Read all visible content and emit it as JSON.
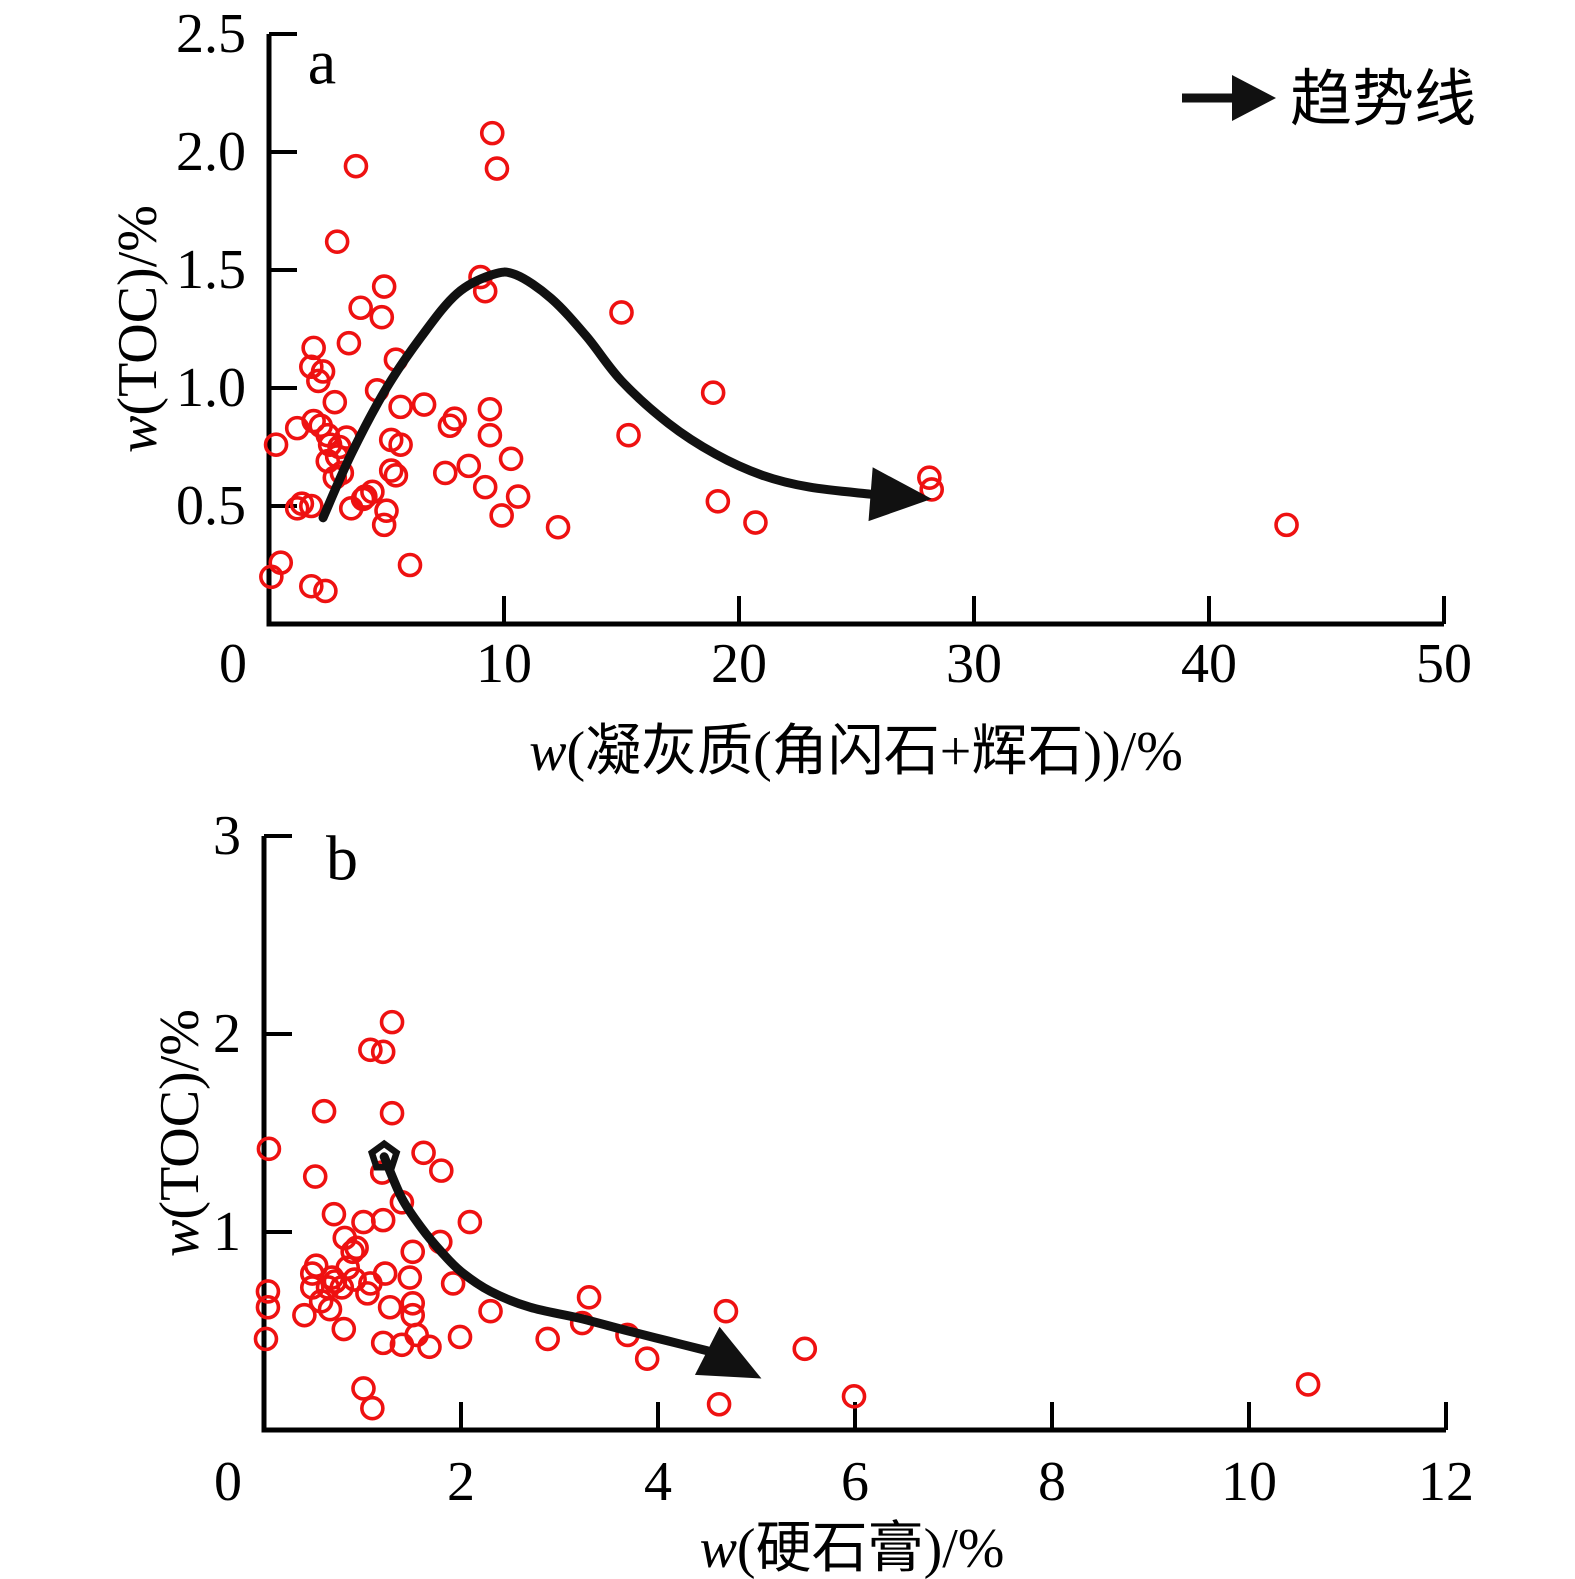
{
  "figure": {
    "background": "#ffffff",
    "colors": {
      "point": "#ee1111",
      "trend": "#111111",
      "axis": "#000000"
    },
    "legend": {
      "label": "趋势线",
      "symbol": "arrow-right"
    }
  },
  "chart_data": [
    {
      "type": "scatter",
      "panel_label": "a",
      "xlabel": "w(凝灰质(角闪石+辉石))/%",
      "ylabel": "w(TOC)/%",
      "xlim": [
        0,
        50
      ],
      "ylim": [
        0,
        2.5
      ],
      "grid": false,
      "legend_position": "top-right",
      "xticks": {
        "values": [
          0,
          10,
          20,
          30,
          40,
          50
        ],
        "labels": [
          "0",
          "10",
          "20",
          "30",
          "40",
          "50"
        ]
      },
      "yticks": {
        "values": [
          0.5,
          1.0,
          1.5,
          2.0,
          2.5
        ],
        "labels": [
          "0.5",
          "1.0",
          "1.5",
          "2.0",
          "2.5"
        ]
      },
      "marker": {
        "shape": "open-circle",
        "color": "#ee1111"
      },
      "points": [
        [
          9.5,
          2.08
        ],
        [
          9.7,
          1.93
        ],
        [
          3.7,
          1.94
        ],
        [
          2.9,
          1.62
        ],
        [
          9.0,
          1.47
        ],
        [
          9.2,
          1.41
        ],
        [
          4.9,
          1.43
        ],
        [
          3.9,
          1.34
        ],
        [
          4.8,
          1.3
        ],
        [
          15.0,
          1.32
        ],
        [
          3.4,
          1.19
        ],
        [
          1.9,
          1.17
        ],
        [
          1.8,
          1.09
        ],
        [
          2.3,
          1.07
        ],
        [
          2.1,
          1.03
        ],
        [
          5.4,
          1.12
        ],
        [
          4.6,
          0.99
        ],
        [
          5.6,
          0.92
        ],
        [
          6.6,
          0.93
        ],
        [
          7.9,
          0.87
        ],
        [
          7.7,
          0.84
        ],
        [
          9.4,
          0.91
        ],
        [
          2.8,
          0.94
        ],
        [
          1.2,
          0.83
        ],
        [
          1.9,
          0.86
        ],
        [
          2.2,
          0.84
        ],
        [
          0.3,
          0.76
        ],
        [
          2.5,
          0.8
        ],
        [
          2.6,
          0.76
        ],
        [
          3.0,
          0.75
        ],
        [
          3.3,
          0.79
        ],
        [
          2.9,
          0.71
        ],
        [
          2.5,
          0.69
        ],
        [
          3.1,
          0.64
        ],
        [
          2.8,
          0.62
        ],
        [
          5.2,
          0.78
        ],
        [
          5.6,
          0.76
        ],
        [
          5.2,
          0.65
        ],
        [
          5.4,
          0.63
        ],
        [
          4.4,
          0.56
        ],
        [
          4.1,
          0.54
        ],
        [
          7.5,
          0.64
        ],
        [
          8.5,
          0.67
        ],
        [
          9.4,
          0.8
        ],
        [
          10.3,
          0.7
        ],
        [
          9.2,
          0.58
        ],
        [
          10.6,
          0.54
        ],
        [
          9.9,
          0.46
        ],
        [
          12.3,
          0.41
        ],
        [
          15.3,
          0.8
        ],
        [
          18.9,
          0.98
        ],
        [
          19.1,
          0.52
        ],
        [
          20.7,
          0.43
        ],
        [
          1.4,
          0.51
        ],
        [
          1.2,
          0.49
        ],
        [
          1.8,
          0.5
        ],
        [
          3.5,
          0.49
        ],
        [
          4.0,
          0.53
        ],
        [
          5.0,
          0.48
        ],
        [
          4.9,
          0.42
        ],
        [
          0.5,
          0.26
        ],
        [
          0.1,
          0.2
        ],
        [
          1.8,
          0.16
        ],
        [
          2.4,
          0.14
        ],
        [
          6.0,
          0.25
        ],
        [
          28.1,
          0.62
        ],
        [
          28.2,
          0.57
        ],
        [
          43.3,
          0.42
        ]
      ],
      "trend": {
        "label": "趋势线",
        "points": [
          [
            2.3,
            0.45
          ],
          [
            3.5,
            0.72
          ],
          [
            5.0,
            1.0
          ],
          [
            6.5,
            1.22
          ],
          [
            8.0,
            1.4
          ],
          [
            9.5,
            1.48
          ],
          [
            10.5,
            1.48
          ],
          [
            12.0,
            1.38
          ],
          [
            13.5,
            1.22
          ],
          [
            15.0,
            1.03
          ],
          [
            17.0,
            0.85
          ],
          [
            19.0,
            0.72
          ],
          [
            21.0,
            0.63
          ],
          [
            23.0,
            0.58
          ],
          [
            25.6,
            0.55
          ]
        ],
        "arrow_tip": [
          28.2,
          0.53
        ]
      }
    },
    {
      "type": "scatter",
      "panel_label": "b",
      "xlabel": "w(硬石膏)/%",
      "ylabel": "w(TOC)/%",
      "xlim": [
        0,
        12
      ],
      "ylim": [
        0,
        3
      ],
      "grid": false,
      "xticks": {
        "values": [
          0,
          2,
          4,
          6,
          8,
          10,
          12
        ],
        "labels": [
          "0",
          "2",
          "4",
          "6",
          "8",
          "10",
          "12"
        ]
      },
      "yticks": {
        "values": [
          1,
          2,
          3
        ],
        "labels": [
          "1",
          "2",
          "3"
        ]
      },
      "marker": {
        "shape": "open-circle",
        "color": "#ee1111"
      },
      "points": [
        [
          1.3,
          2.06
        ],
        [
          1.08,
          1.92
        ],
        [
          1.21,
          1.91
        ],
        [
          0.61,
          1.61
        ],
        [
          1.3,
          1.6
        ],
        [
          0.05,
          1.42
        ],
        [
          1.2,
          1.3
        ],
        [
          0.52,
          1.28
        ],
        [
          1.62,
          1.4
        ],
        [
          1.8,
          1.31
        ],
        [
          1.4,
          1.15
        ],
        [
          0.71,
          1.09
        ],
        [
          1.01,
          1.05
        ],
        [
          1.21,
          1.06
        ],
        [
          2.09,
          1.05
        ],
        [
          1.79,
          0.95
        ],
        [
          1.51,
          0.9
        ],
        [
          0.82,
          0.97
        ],
        [
          0.9,
          0.9
        ],
        [
          0.94,
          0.92
        ],
        [
          0.53,
          0.83
        ],
        [
          0.49,
          0.79
        ],
        [
          0.49,
          0.72
        ],
        [
          0.69,
          0.77
        ],
        [
          0.85,
          0.82
        ],
        [
          0.65,
          0.72
        ],
        [
          0.79,
          0.72
        ],
        [
          0.92,
          0.76
        ],
        [
          1.08,
          0.74
        ],
        [
          1.23,
          0.79
        ],
        [
          0.04,
          0.7
        ],
        [
          0.04,
          0.62
        ],
        [
          0.02,
          0.46
        ],
        [
          1.48,
          0.77
        ],
        [
          1.92,
          0.74
        ],
        [
          1.51,
          0.64
        ],
        [
          1.51,
          0.58
        ],
        [
          1.28,
          0.62
        ],
        [
          0.41,
          0.58
        ],
        [
          0.67,
          0.61
        ],
        [
          0.58,
          0.65
        ],
        [
          0.72,
          0.75
        ],
        [
          0.81,
          0.51
        ],
        [
          1.05,
          0.69
        ],
        [
          1.55,
          0.48
        ],
        [
          1.4,
          0.43
        ],
        [
          1.21,
          0.44
        ],
        [
          1.68,
          0.42
        ],
        [
          1.99,
          0.47
        ],
        [
          2.3,
          0.6
        ],
        [
          2.88,
          0.46
        ],
        [
          3.3,
          0.67
        ],
        [
          3.23,
          0.54
        ],
        [
          3.69,
          0.48
        ],
        [
          3.89,
          0.36
        ],
        [
          4.69,
          0.6
        ],
        [
          5.49,
          0.41
        ],
        [
          4.62,
          0.13
        ],
        [
          5.99,
          0.17
        ],
        [
          1.01,
          0.21
        ],
        [
          1.1,
          0.11
        ],
        [
          10.6,
          0.23
        ]
      ],
      "trend": {
        "label": "趋势线",
        "points": [
          [
            1.22,
            1.38
          ],
          [
            1.4,
            1.17
          ],
          [
            1.6,
            1.02
          ],
          [
            1.8,
            0.9
          ],
          [
            2.0,
            0.8
          ],
          [
            2.3,
            0.7
          ],
          [
            2.7,
            0.62
          ],
          [
            3.2,
            0.565
          ],
          [
            3.7,
            0.5
          ],
          [
            4.1,
            0.45
          ],
          [
            4.5,
            0.4
          ]
        ],
        "arrow_tip": [
          5.05,
          0.26
        ],
        "start_marker": [
          1.22,
          1.38
        ]
      }
    }
  ]
}
